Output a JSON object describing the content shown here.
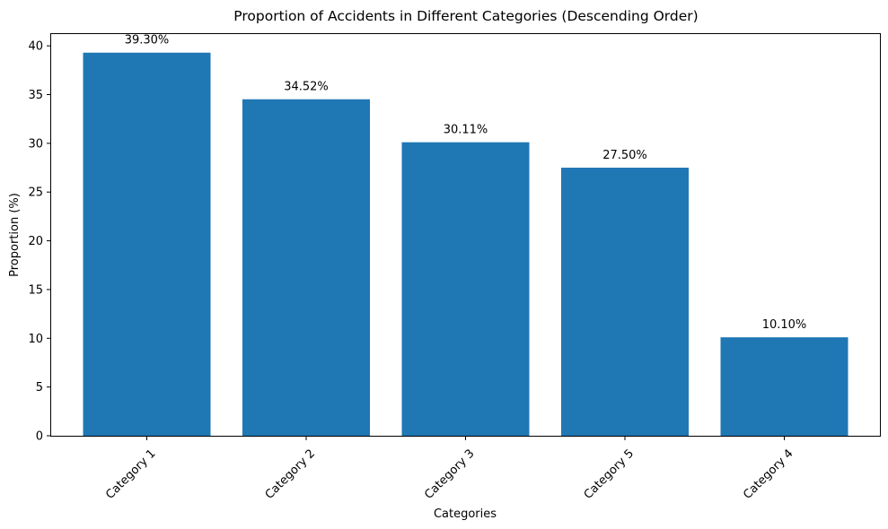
{
  "chart_data": {
    "type": "bar",
    "title": "Proportion of Accidents in Different Categories (Descending Order)",
    "xlabel": "Categories",
    "ylabel": "Proportion (%)",
    "categories": [
      "Category 1",
      "Category 2",
      "Category 3",
      "Category 5",
      "Category 4"
    ],
    "values": [
      39.3,
      34.52,
      30.11,
      27.5,
      10.1
    ],
    "value_labels": [
      "39.30%",
      "34.52%",
      "30.11%",
      "27.50%",
      "10.10%"
    ],
    "ylim": [
      0,
      41.3
    ],
    "yticks": [
      0,
      5,
      10,
      15,
      20,
      25,
      30,
      35,
      40
    ],
    "ytick_labels": [
      "0",
      "5",
      "10",
      "15",
      "20",
      "25",
      "30",
      "35",
      "40"
    ],
    "xtick_rotation": 45,
    "grid": false,
    "bar_color": "#1f77b4"
  }
}
